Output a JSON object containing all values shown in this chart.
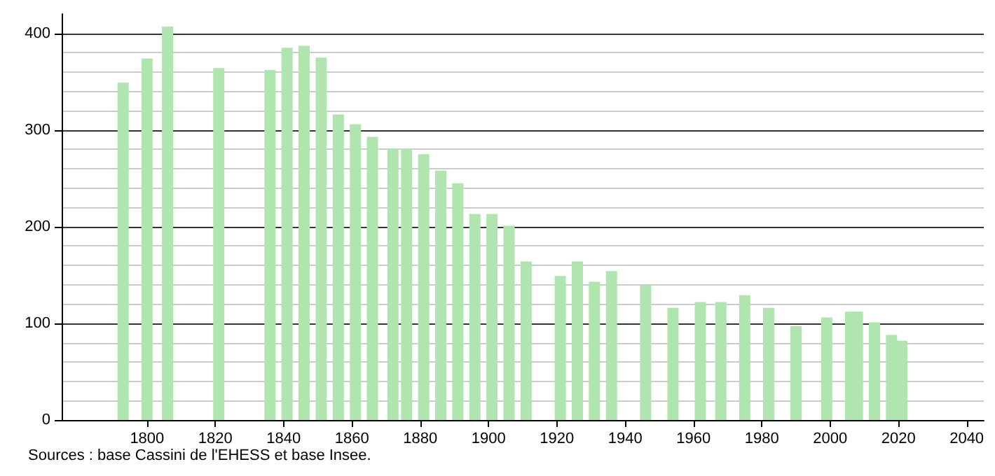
{
  "chart_data": {
    "type": "bar",
    "x": [
      1793,
      1800,
      1806,
      1821,
      1836,
      1841,
      1846,
      1851,
      1856,
      1861,
      1866,
      1872,
      1876,
      1881,
      1886,
      1891,
      1896,
      1901,
      1906,
      1911,
      1921,
      1926,
      1931,
      1936,
      1946,
      1954,
      1962,
      1968,
      1975,
      1982,
      1990,
      1999,
      2006,
      2008,
      2013,
      2018,
      2021
    ],
    "values": [
      349,
      374,
      407,
      364,
      362,
      385,
      387,
      375,
      316,
      306,
      293,
      281,
      281,
      275,
      258,
      245,
      213,
      213,
      201,
      164,
      149,
      164,
      143,
      154,
      139,
      116,
      122,
      122,
      129,
      116,
      97,
      106,
      112,
      112,
      101,
      88,
      82
    ],
    "color": "#b0e5b0",
    "xlim": [
      1775,
      2045
    ],
    "xticks": [
      1800,
      1820,
      1840,
      1860,
      1880,
      1900,
      1920,
      1940,
      1960,
      1980,
      2000,
      2020,
      2040
    ],
    "ylim": [
      0,
      420
    ],
    "yticks": [
      0,
      100,
      200,
      300,
      400
    ],
    "grid": "y",
    "annotations": [
      "Sources : base Cassini de l'EHESS et base Insee."
    ]
  }
}
